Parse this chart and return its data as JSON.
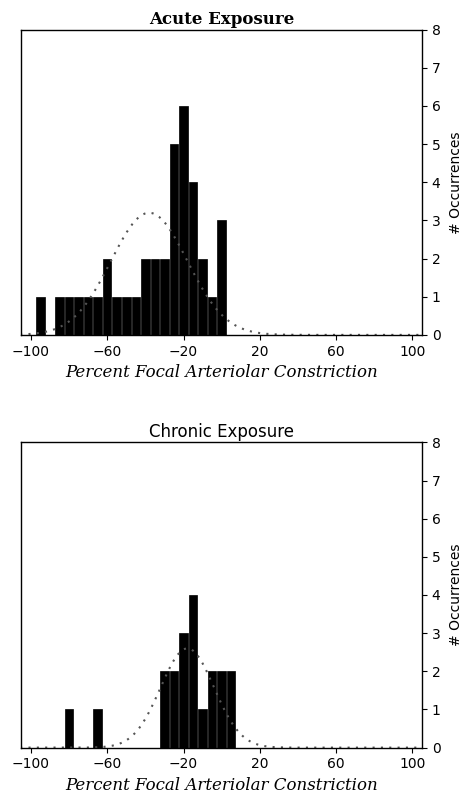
{
  "acute": {
    "title": "Acute Exposure",
    "title_fontfamily": "serif",
    "title_fontweight": "bold",
    "bar_centers": [
      -95,
      -90,
      -85,
      -80,
      -75,
      -70,
      -65,
      -60,
      -55,
      -50,
      -45,
      -40,
      -35,
      -30,
      -25,
      -20,
      -15,
      -10,
      -5,
      0
    ],
    "bar_heights": [
      1,
      0,
      1,
      1,
      1,
      1,
      1,
      2,
      1,
      1,
      1,
      2,
      2,
      2,
      5,
      6,
      4,
      2,
      1,
      3
    ],
    "curve_mean": -38,
    "curve_std": 20,
    "curve_scale": 3.2
  },
  "chronic": {
    "title": "Chronic Exposure",
    "title_fontfamily": "sans-serif",
    "title_fontweight": "normal",
    "bar_centers": [
      -80,
      -65,
      -30,
      -25,
      -20,
      -15,
      -10,
      -5,
      0,
      5
    ],
    "bar_heights": [
      1,
      1,
      2,
      2,
      3,
      4,
      1,
      2,
      2,
      2
    ],
    "curve_mean": -18,
    "curve_std": 14,
    "curve_scale": 2.6
  },
  "xlim": [
    -105,
    105
  ],
  "ylim": [
    0,
    8
  ],
  "xticks": [
    -100,
    -60,
    -20,
    20,
    60,
    100
  ],
  "yticks": [
    0,
    1,
    2,
    3,
    4,
    5,
    6,
    7,
    8
  ],
  "xlabel": "Percent Focal Arteriolar Constriction",
  "ylabel": "# Occurrences",
  "bar_width": 4.5,
  "bar_color": "#000000",
  "bar_edgecolor": "#000000",
  "bg_color": "#ffffff",
  "curve_color": "#555555",
  "title_fontsize": 12,
  "label_fontsize": 12,
  "tick_fontsize": 10,
  "ylabel_fontsize": 10
}
